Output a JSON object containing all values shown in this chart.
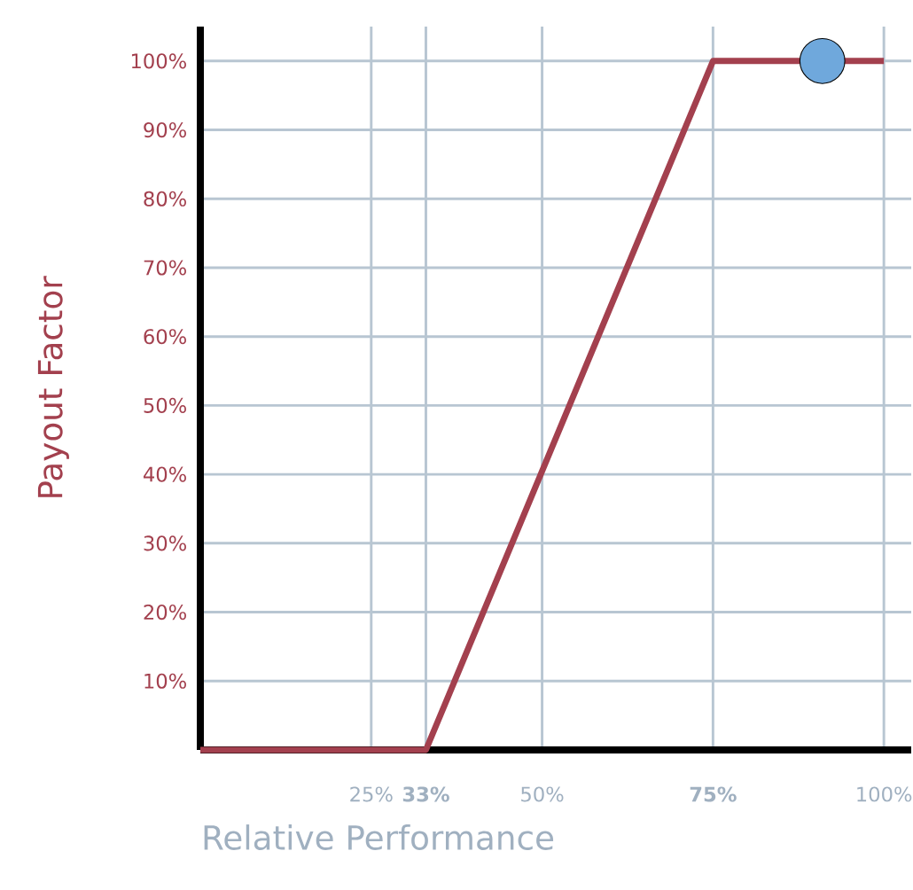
{
  "chart_data": {
    "type": "line",
    "xlabel": "Relative Performance",
    "ylabel": "Payout Factor",
    "xlim": [
      0,
      104
    ],
    "ylim": [
      0,
      105
    ],
    "xticks": [
      {
        "value": 25,
        "label": "25%"
      },
      {
        "value": 33,
        "label": "**33%**"
      },
      {
        "value": 50,
        "label": "50%"
      },
      {
        "value": 75,
        "label": "**75%**"
      },
      {
        "value": 100,
        "label": "100%"
      }
    ],
    "yticks": [
      {
        "value": 10,
        "label": "10%"
      },
      {
        "value": 20,
        "label": "20%"
      },
      {
        "value": 30,
        "label": "30%"
      },
      {
        "value": 40,
        "label": "40%"
      },
      {
        "value": 50,
        "label": "50%"
      },
      {
        "value": 60,
        "label": "60%"
      },
      {
        "value": 70,
        "label": "70%"
      },
      {
        "value": 80,
        "label": "80%"
      },
      {
        "value": 90,
        "label": "90%"
      },
      {
        "value": 100,
        "label": "100%"
      }
    ],
    "grid": true,
    "series": [
      {
        "color": "#a3404e",
        "marker": "none",
        "x": [
          0,
          33,
          75,
          100
        ],
        "values": [
          0,
          0,
          100,
          100
        ]
      },
      {
        "type": "scatter",
        "color": "#6fa8dc",
        "marker": "circle",
        "x": [
          91
        ],
        "values": [
          100
        ]
      }
    ]
  }
}
